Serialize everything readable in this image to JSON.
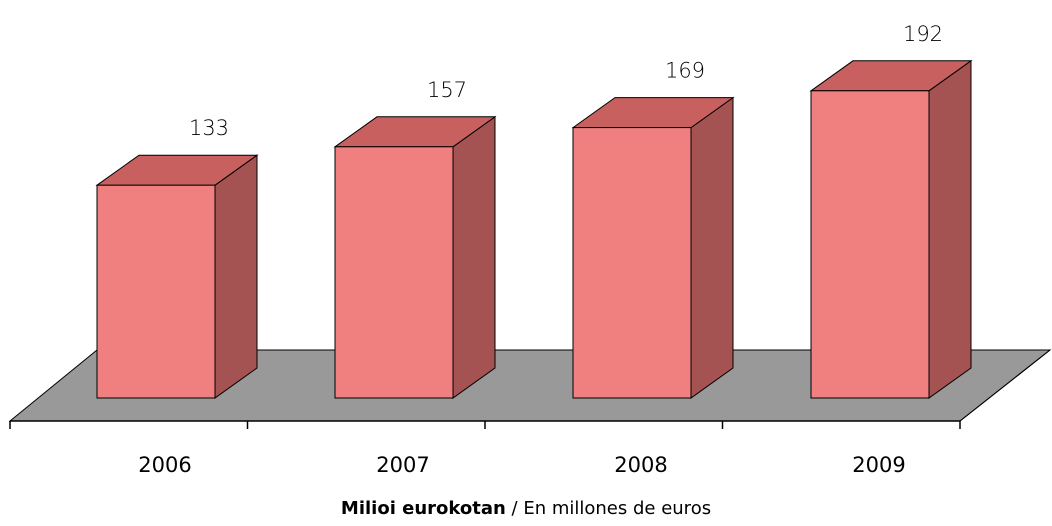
{
  "chart_data": {
    "type": "bar",
    "style": "3d",
    "categories": [
      "2006",
      "2007",
      "2008",
      "2009"
    ],
    "values": [
      133,
      157,
      169,
      192
    ],
    "data_labels": [
      "133",
      "157",
      "169",
      "192"
    ],
    "grid": false,
    "legend": "none"
  },
  "caption": {
    "bold": "Milioi eurokotan",
    "separator": " / ",
    "light": "En millones de euros"
  },
  "colors": {
    "bar_front": "#f08080",
    "bar_top": "#c8605f",
    "bar_side": "#a55252",
    "floor": "#999999",
    "edges": "#000000"
  }
}
